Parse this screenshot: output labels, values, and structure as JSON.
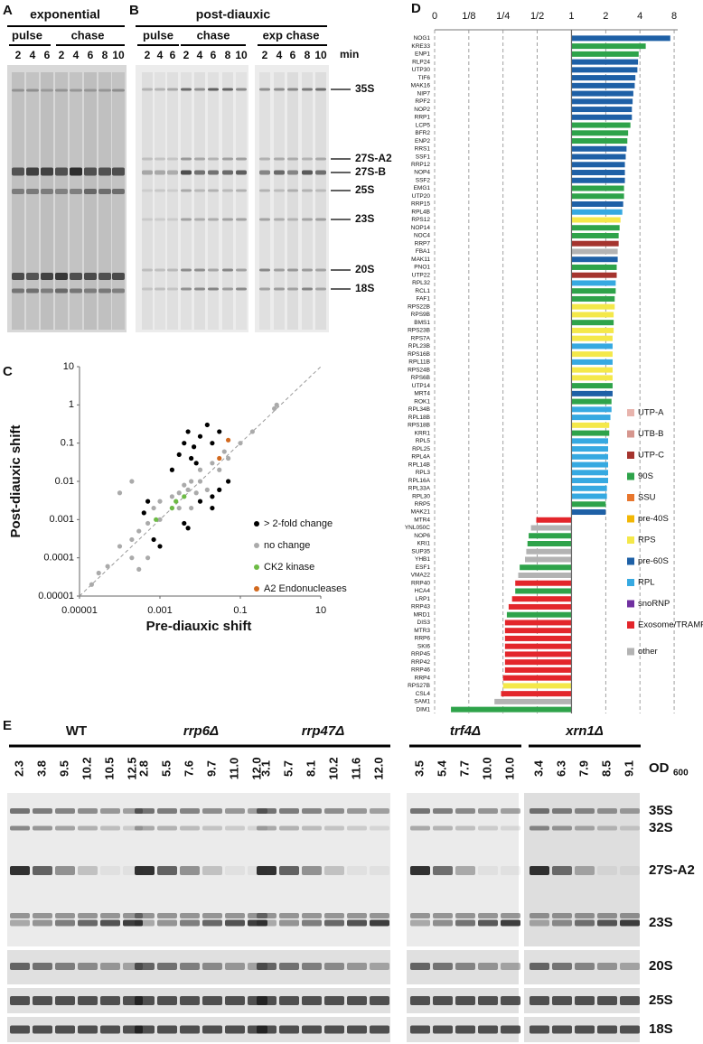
{
  "panel_letters": [
    "A",
    "B",
    "C",
    "D",
    "E"
  ],
  "panel_a": {
    "title": "exponential",
    "phases": [
      "pulse",
      "chase"
    ],
    "lanes": [
      "2",
      "4",
      "6",
      "2",
      "4",
      "6",
      "8",
      "10"
    ]
  },
  "panel_b": {
    "title": "post-diauxic",
    "phases": [
      "pulse",
      "chase",
      "exp chase"
    ],
    "lanes": [
      "2",
      "4",
      "6",
      "2",
      "4",
      "6",
      "8",
      "10",
      "2",
      "4",
      "6",
      "8",
      "10"
    ],
    "unit": "min",
    "bands": [
      "35S",
      "27S-A2",
      "27S-B",
      "25S",
      "23S",
      "20S",
      "18S"
    ]
  },
  "chart_data": [
    {
      "type": "scatter",
      "xlabel": "Pre-diauxic shift",
      "ylabel": "Post-diauxic shift",
      "log_x": true,
      "log_y": true,
      "diagonal": true,
      "xlim": [
        1e-05,
        10
      ],
      "ylim": [
        1e-05,
        10
      ],
      "xticks": [
        1e-05,
        0.001,
        0.1,
        10
      ],
      "yticks": [
        1e-05,
        0.0001,
        0.001,
        0.01,
        0.1,
        1,
        10
      ],
      "series": [
        {
          "name": "no change",
          "color": "#aaaaaa",
          "x": [
            2e-05,
            3e-05,
            5e-05,
            0.0001,
            0.0002,
            0.0002,
            0.0003,
            0.0005,
            0.0007,
            0.001,
            0.001,
            0.002,
            0.002,
            0.003,
            0.003,
            0.004,
            0.005,
            0.006,
            0.008,
            0.01,
            0.01,
            0.02,
            0.03,
            0.04,
            0.05,
            0.1,
            0.2,
            0.7,
            0.8,
            0.0002,
            0.0001,
            0.0005,
            0.006,
            0.015,
            0.0003
          ],
          "y": [
            2e-05,
            4e-05,
            6e-05,
            0.0002,
            0.0003,
            0.0001,
            0.0005,
            0.0008,
            0.002,
            0.001,
            0.003,
            0.002,
            0.004,
            0.005,
            0.002,
            0.008,
            0.006,
            0.01,
            0.005,
            0.02,
            0.01,
            0.03,
            0.02,
            0.06,
            0.04,
            0.1,
            0.2,
            0.8,
            1,
            0.01,
            0.005,
            0.0001,
            0.002,
            0.006,
            5e-05
          ]
        },
        {
          "name": "> 2-fold change",
          "color": "#000000",
          "x": [
            0.003,
            0.004,
            0.005,
            0.007,
            0.01,
            0.015,
            0.02,
            0.008,
            0.006,
            0.03,
            0.002,
            0.01,
            0.02,
            0.03,
            0.05,
            0.02,
            0.004,
            0.005,
            0.001,
            0.0007,
            0.0005,
            0.0004
          ],
          "y": [
            0.05,
            0.1,
            0.2,
            0.08,
            0.15,
            0.3,
            0.1,
            0.03,
            0.04,
            0.2,
            0.02,
            0.003,
            0.004,
            0.006,
            0.01,
            0.002,
            0.0008,
            0.0006,
            0.0002,
            0.0003,
            0.003,
            0.0015
          ]
        },
        {
          "name": "CK2 kinase",
          "color": "#6dbb45",
          "x": [
            0.002,
            0.0025,
            0.004,
            0.0008
          ],
          "y": [
            0.002,
            0.003,
            0.004,
            0.001
          ]
        },
        {
          "name": "A2 Endonucleases",
          "color": "#d2691e",
          "x": [
            0.05,
            0.03
          ],
          "y": [
            0.12,
            0.04
          ]
        }
      ],
      "legend_order": [
        "> 2-fold change",
        "no change",
        "CK2 kinase",
        "A2 Endonucleases"
      ]
    },
    {
      "type": "barh",
      "log_x": true,
      "grid": true,
      "legend_position": "right",
      "xlim": [
        0.0625,
        8.6
      ],
      "xticks": [
        {
          "value": 0.0625,
          "label": "0"
        },
        {
          "value": 0.125,
          "label": "1/8"
        },
        {
          "value": 0.25,
          "label": "1/4"
        },
        {
          "value": 0.5,
          "label": "1/2"
        },
        1,
        2,
        4,
        8
      ],
      "categories": [
        "NOG1",
        "KRE33",
        "ENP1",
        "RLP24",
        "UTP30",
        "TIF6",
        "MAK16",
        "NIP7",
        "RPF2",
        "NOP2",
        "RRP1",
        "LCP5",
        "BFR2",
        "ENP2",
        "RRS1",
        "SSF1",
        "RRP12",
        "NOP4",
        "SSF2",
        "EMG1",
        "UTP20",
        "RRP15",
        "RPL4B",
        "RPS12",
        "NOP14",
        "NOC4",
        "RRP7",
        "FBA1",
        "MAK11",
        "PNO1",
        "UTP22",
        "RPL32",
        "RCL1",
        "FAF1",
        "RPS22B",
        "RPS9B",
        "BMS1",
        "RPS23B",
        "RPS7A",
        "RPL23B",
        "RPS16B",
        "RPL11B",
        "RPS24B",
        "RPS6B",
        "UTP14",
        "MRT4",
        "ROK1",
        "RPL34B",
        "RPL18B",
        "RPS18B",
        "KRR1",
        "RPL5",
        "RPL25",
        "RPL4A",
        "RPL14B",
        "RPL3",
        "RPL16A",
        "RPL33A",
        "RPL30",
        "RRP5",
        "MAK21",
        "MTR4",
        "YNL050C",
        "NOP6",
        "KRI1",
        "SUP35",
        "YHB1",
        "ESF1",
        "VMA22",
        "RRP40",
        "HCA4",
        "LRP1",
        "RRP43",
        "MRD1",
        "DIS3",
        "MTR3",
        "RRP6",
        "SKI6",
        "RRP45",
        "RRP42",
        "RRP46",
        "RRP4",
        "RPS27B",
        "CSL4",
        "SAM1",
        "DIM1"
      ],
      "values": [
        7.4,
        4.5,
        3.9,
        3.85,
        3.8,
        3.65,
        3.6,
        3.5,
        3.45,
        3.4,
        3.4,
        3.3,
        3.15,
        3.1,
        3.05,
        3.0,
        2.95,
        2.95,
        2.95,
        2.9,
        2.9,
        2.85,
        2.8,
        2.7,
        2.65,
        2.6,
        2.6,
        2.55,
        2.55,
        2.5,
        2.5,
        2.45,
        2.45,
        2.4,
        2.4,
        2.35,
        2.35,
        2.35,
        2.3,
        2.3,
        2.3,
        2.3,
        2.3,
        2.3,
        2.3,
        2.3,
        2.25,
        2.25,
        2.2,
        2.15,
        2.15,
        2.1,
        2.1,
        2.1,
        2.1,
        2.1,
        2.1,
        2.05,
        2.05,
        2.0,
        2.0,
        0.49,
        0.44,
        0.42,
        0.41,
        0.4,
        0.39,
        0.35,
        0.34,
        0.32,
        0.32,
        0.3,
        0.28,
        0.27,
        0.26,
        0.26,
        0.26,
        0.26,
        0.26,
        0.26,
        0.26,
        0.25,
        0.25,
        0.24,
        0.21,
        0.087
      ],
      "colors": [
        "#1e60a6",
        "#2ea34a",
        "#2ea34a",
        "#1e60a6",
        "#1e60a6",
        "#1e60a6",
        "#1e60a6",
        "#1e60a6",
        "#1e60a6",
        "#1e60a6",
        "#1e60a6",
        "#2ea34a",
        "#2ea34a",
        "#2ea34a",
        "#1e60a6",
        "#1e60a6",
        "#1e60a6",
        "#1e60a6",
        "#1e60a6",
        "#2ea34a",
        "#2ea34a",
        "#1e60a6",
        "#36a9e1",
        "#f4e84a",
        "#2ea34a",
        "#2ea34a",
        "#a5342e",
        "#b3b3b3",
        "#1e60a6",
        "#2ea34a",
        "#a5342e",
        "#36a9e1",
        "#2ea34a",
        "#2ea34a",
        "#f4e84a",
        "#f4e84a",
        "#2ea34a",
        "#f4e84a",
        "#f4e84a",
        "#36a9e1",
        "#f4e84a",
        "#36a9e1",
        "#f4e84a",
        "#f4e84a",
        "#2ea34a",
        "#1e60a6",
        "#2ea34a",
        "#36a9e1",
        "#36a9e1",
        "#f4e84a",
        "#2ea34a",
        "#36a9e1",
        "#36a9e1",
        "#36a9e1",
        "#36a9e1",
        "#36a9e1",
        "#36a9e1",
        "#36a9e1",
        "#36a9e1",
        "#2ea34a",
        "#1e60a6",
        "#e3262b",
        "#b3b3b3",
        "#2ea34a",
        "#2ea34a",
        "#b3b3b3",
        "#b3b3b3",
        "#2ea34a",
        "#b3b3b3",
        "#e3262b",
        "#2ea34a",
        "#e3262b",
        "#e3262b",
        "#2ea34a",
        "#e3262b",
        "#e3262b",
        "#e3262b",
        "#e3262b",
        "#e3262b",
        "#e3262b",
        "#e3262b",
        "#e3262b",
        "#f4e84a",
        "#e3262b",
        "#b3b3b3",
        "#2ea34a"
      ],
      "legend": [
        {
          "name": "UTP-A",
          "color": "#e8b4ad"
        },
        {
          "name": "UTB-B",
          "color": "#d6968e"
        },
        {
          "name": "UTP-C",
          "color": "#a5342e"
        },
        {
          "name": "90S",
          "color": "#2ea34a"
        },
        {
          "name": "SSU",
          "color": "#e8762d"
        },
        {
          "name": "pre-40S",
          "color": "#f2b705"
        },
        {
          "name": "RPS",
          "color": "#f4e84a"
        },
        {
          "name": "pre-60S",
          "color": "#1e60a6"
        },
        {
          "name": "RPL",
          "color": "#36a9e1"
        },
        {
          "name": "snoRNP",
          "color": "#7030a0"
        },
        {
          "name": "Exosome/TRAMP",
          "color": "#e3262b"
        },
        {
          "name": "other",
          "color": "#b3b3b3"
        }
      ]
    }
  ],
  "panel_e": {
    "strains": [
      {
        "name": "WT",
        "od": [
          "2.3",
          "3.8",
          "9.5",
          "10.2",
          "10.5",
          "12.5"
        ]
      },
      {
        "name": "rrp6Δ",
        "od": [
          "2.8",
          "5.5",
          "7.6",
          "9.7",
          "11.0",
          "12.0"
        ]
      },
      {
        "name": "rrp47Δ",
        "od": [
          "3.1",
          "5.7",
          "8.1",
          "10.2",
          "11.6",
          "12.0"
        ]
      },
      {
        "name": "trf4Δ",
        "od": [
          "3.5",
          "5.4",
          "7.7",
          "10.0",
          "10.0"
        ]
      },
      {
        "name": "xrn1Δ",
        "od": [
          "3.4",
          "6.3",
          "7.9",
          "8.5",
          "9.1"
        ]
      }
    ],
    "od_label": "OD",
    "od_subscript": "600",
    "bands": [
      "35S",
      "32S",
      "27S-A2",
      "23S",
      "20S",
      "25S",
      "18S"
    ]
  }
}
